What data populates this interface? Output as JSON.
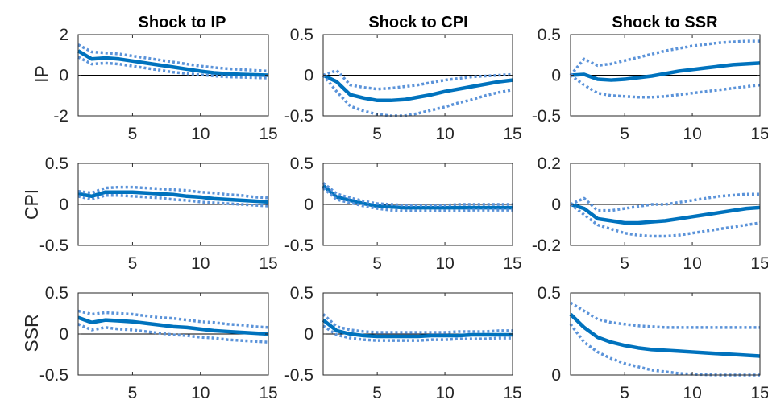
{
  "colors": {
    "line": "#0072BD",
    "band": "#5B93D9"
  },
  "column_titles": [
    "Shock to IP",
    "Shock to CPI",
    "Shock to SSR"
  ],
  "row_labels": [
    "IP",
    "CPI",
    "SSR"
  ],
  "chart_data": [
    {
      "type": "line",
      "row": 0,
      "col": 0,
      "title": "Shock to IP",
      "ylabel": "IP",
      "xlim": [
        1,
        15
      ],
      "ylim": [
        -2,
        2
      ],
      "xticks": [
        5,
        10,
        15
      ],
      "xtick_labels": [
        "5",
        "10",
        "15"
      ],
      "yticks": [
        2,
        0,
        -2
      ],
      "ytick_labels": [
        "2",
        "0",
        "-2"
      ],
      "x": [
        1,
        2,
        3,
        4,
        5,
        6,
        7,
        8,
        9,
        10,
        11,
        12,
        13,
        14,
        15
      ],
      "series": [
        {
          "role": "response",
          "values": [
            1.2,
            0.8,
            0.85,
            0.8,
            0.7,
            0.6,
            0.5,
            0.4,
            0.3,
            0.2,
            0.12,
            0.07,
            0.04,
            0.02,
            0.0
          ]
        },
        {
          "role": "upper",
          "values": [
            1.5,
            1.15,
            1.1,
            1.05,
            0.95,
            0.85,
            0.75,
            0.65,
            0.55,
            0.45,
            0.38,
            0.32,
            0.28,
            0.24,
            0.2
          ]
        },
        {
          "role": "lower",
          "values": [
            0.9,
            0.55,
            0.6,
            0.55,
            0.45,
            0.35,
            0.25,
            0.15,
            0.08,
            0.02,
            -0.04,
            -0.08,
            -0.1,
            -0.12,
            -0.14
          ]
        }
      ]
    },
    {
      "type": "line",
      "row": 0,
      "col": 1,
      "title": "Shock to CPI",
      "ylabel": "",
      "xlim": [
        1,
        15
      ],
      "ylim": [
        -0.5,
        0.5
      ],
      "xticks": [
        5,
        10,
        15
      ],
      "xtick_labels": [
        "5",
        "10",
        "15"
      ],
      "yticks": [
        0.5,
        0,
        -0.5
      ],
      "ytick_labels": [
        "0.5",
        "0",
        "-0.5"
      ],
      "x": [
        1,
        2,
        3,
        4,
        5,
        6,
        7,
        8,
        9,
        10,
        11,
        12,
        13,
        14,
        15
      ],
      "series": [
        {
          "role": "response",
          "values": [
            0.0,
            -0.08,
            -0.24,
            -0.28,
            -0.31,
            -0.31,
            -0.3,
            -0.27,
            -0.24,
            -0.2,
            -0.17,
            -0.14,
            -0.11,
            -0.08,
            -0.06
          ]
        },
        {
          "role": "upper",
          "values": [
            0.0,
            0.06,
            -0.12,
            -0.15,
            -0.17,
            -0.16,
            -0.14,
            -0.12,
            -0.09,
            -0.06,
            -0.04,
            -0.02,
            -0.01,
            0.0,
            0.01
          ]
        },
        {
          "role": "lower",
          "values": [
            0.0,
            -0.2,
            -0.38,
            -0.44,
            -0.48,
            -0.5,
            -0.5,
            -0.47,
            -0.43,
            -0.39,
            -0.34,
            -0.3,
            -0.25,
            -0.21,
            -0.18
          ]
        }
      ]
    },
    {
      "type": "line",
      "row": 0,
      "col": 2,
      "title": "Shock to SSR",
      "ylabel": "",
      "xlim": [
        1,
        15
      ],
      "ylim": [
        -0.5,
        0.5
      ],
      "xticks": [
        5,
        10,
        15
      ],
      "xtick_labels": [
        "5",
        "10",
        "15"
      ],
      "yticks": [
        0.5,
        0,
        -0.5
      ],
      "ytick_labels": [
        "0.5",
        "0",
        "-0.5"
      ],
      "x": [
        1,
        2,
        3,
        4,
        5,
        6,
        7,
        8,
        9,
        10,
        11,
        12,
        13,
        14,
        15
      ],
      "series": [
        {
          "role": "response",
          "values": [
            0.0,
            0.01,
            -0.05,
            -0.06,
            -0.05,
            -0.03,
            -0.01,
            0.02,
            0.05,
            0.07,
            0.09,
            0.11,
            0.13,
            0.14,
            0.15
          ]
        },
        {
          "role": "upper",
          "values": [
            0.0,
            0.2,
            0.12,
            0.14,
            0.18,
            0.22,
            0.26,
            0.3,
            0.33,
            0.36,
            0.38,
            0.4,
            0.41,
            0.42,
            0.42
          ]
        },
        {
          "role": "lower",
          "values": [
            0.0,
            -0.12,
            -0.22,
            -0.25,
            -0.26,
            -0.27,
            -0.27,
            -0.26,
            -0.24,
            -0.22,
            -0.2,
            -0.18,
            -0.16,
            -0.14,
            -0.12
          ]
        }
      ]
    },
    {
      "type": "line",
      "row": 1,
      "col": 0,
      "title": "Shock to IP",
      "ylabel": "CPI",
      "xlim": [
        1,
        15
      ],
      "ylim": [
        -0.5,
        0.5
      ],
      "xticks": [
        5,
        10,
        15
      ],
      "xtick_labels": [
        "5",
        "10",
        "15"
      ],
      "yticks": [
        0.5,
        0,
        -0.5
      ],
      "ytick_labels": [
        "0.5",
        "0",
        "-0.5"
      ],
      "x": [
        1,
        2,
        3,
        4,
        5,
        6,
        7,
        8,
        9,
        10,
        11,
        12,
        13,
        14,
        15
      ],
      "series": [
        {
          "role": "response",
          "values": [
            0.13,
            0.1,
            0.15,
            0.15,
            0.15,
            0.14,
            0.13,
            0.12,
            0.1,
            0.09,
            0.07,
            0.06,
            0.05,
            0.04,
            0.03
          ]
        },
        {
          "role": "upper",
          "values": [
            0.16,
            0.14,
            0.2,
            0.21,
            0.21,
            0.2,
            0.19,
            0.18,
            0.17,
            0.15,
            0.14,
            0.12,
            0.11,
            0.09,
            0.08
          ]
        },
        {
          "role": "lower",
          "values": [
            0.1,
            0.06,
            0.11,
            0.11,
            0.1,
            0.09,
            0.08,
            0.06,
            0.05,
            0.03,
            0.02,
            0.01,
            0.0,
            -0.01,
            -0.02
          ]
        }
      ]
    },
    {
      "type": "line",
      "row": 1,
      "col": 1,
      "title": "Shock to CPI",
      "ylabel": "",
      "xlim": [
        1,
        15
      ],
      "ylim": [
        -0.5,
        0.5
      ],
      "xticks": [
        5,
        10,
        15
      ],
      "xtick_labels": [
        "5",
        "10",
        "15"
      ],
      "yticks": [
        0.5,
        0,
        -0.5
      ],
      "ytick_labels": [
        "0.5",
        "0",
        "-0.5"
      ],
      "x": [
        1,
        2,
        3,
        4,
        5,
        6,
        7,
        8,
        9,
        10,
        11,
        12,
        13,
        14,
        15
      ],
      "series": [
        {
          "role": "response",
          "values": [
            0.23,
            0.09,
            0.05,
            0.01,
            -0.02,
            -0.03,
            -0.04,
            -0.04,
            -0.04,
            -0.04,
            -0.04,
            -0.04,
            -0.04,
            -0.04,
            -0.04
          ]
        },
        {
          "role": "upper",
          "values": [
            0.26,
            0.13,
            0.08,
            0.04,
            0.01,
            0.0,
            -0.01,
            -0.01,
            -0.01,
            -0.01,
            0.0,
            0.0,
            0.0,
            0.0,
            0.0
          ]
        },
        {
          "role": "lower",
          "values": [
            0.2,
            0.06,
            0.02,
            -0.02,
            -0.05,
            -0.07,
            -0.08,
            -0.08,
            -0.08,
            -0.08,
            -0.08,
            -0.07,
            -0.07,
            -0.07,
            -0.07
          ]
        }
      ]
    },
    {
      "type": "line",
      "row": 1,
      "col": 2,
      "title": "Shock to SSR",
      "ylabel": "",
      "xlim": [
        1,
        15
      ],
      "ylim": [
        -0.2,
        0.2
      ],
      "xticks": [
        5,
        10,
        15
      ],
      "xtick_labels": [
        "5",
        "10",
        "15"
      ],
      "yticks": [
        0.2,
        0,
        -0.2
      ],
      "ytick_labels": [
        "0.2",
        "0",
        "-0.2"
      ],
      "x": [
        1,
        2,
        3,
        4,
        5,
        6,
        7,
        8,
        9,
        10,
        11,
        12,
        13,
        14,
        15
      ],
      "series": [
        {
          "role": "response",
          "values": [
            0.0,
            -0.02,
            -0.07,
            -0.08,
            -0.09,
            -0.09,
            -0.085,
            -0.08,
            -0.07,
            -0.06,
            -0.05,
            -0.04,
            -0.03,
            -0.02,
            -0.015
          ]
        },
        {
          "role": "upper",
          "values": [
            0.0,
            0.03,
            -0.03,
            -0.03,
            -0.02,
            -0.01,
            0.0,
            0.0,
            0.01,
            0.02,
            0.03,
            0.04,
            0.045,
            0.05,
            0.05
          ]
        },
        {
          "role": "lower",
          "values": [
            0.0,
            -0.05,
            -0.1,
            -0.12,
            -0.14,
            -0.15,
            -0.155,
            -0.155,
            -0.15,
            -0.14,
            -0.13,
            -0.12,
            -0.11,
            -0.1,
            -0.09
          ]
        }
      ]
    },
    {
      "type": "line",
      "row": 2,
      "col": 0,
      "title": "Shock to IP",
      "ylabel": "SSR",
      "xlim": [
        1,
        15
      ],
      "ylim": [
        -0.5,
        0.5
      ],
      "xticks": [
        5,
        10,
        15
      ],
      "xtick_labels": [
        "5",
        "10",
        "15"
      ],
      "yticks": [
        0.5,
        0,
        -0.5
      ],
      "ytick_labels": [
        "0.5",
        "0",
        "-0.5"
      ],
      "x": [
        1,
        2,
        3,
        4,
        5,
        6,
        7,
        8,
        9,
        10,
        11,
        12,
        13,
        14,
        15
      ],
      "series": [
        {
          "role": "response",
          "values": [
            0.2,
            0.14,
            0.17,
            0.16,
            0.15,
            0.13,
            0.11,
            0.09,
            0.08,
            0.06,
            0.04,
            0.03,
            0.02,
            0.01,
            0.0
          ]
        },
        {
          "role": "upper",
          "values": [
            0.28,
            0.24,
            0.26,
            0.25,
            0.24,
            0.22,
            0.2,
            0.19,
            0.17,
            0.15,
            0.14,
            0.12,
            0.11,
            0.09,
            0.08
          ]
        },
        {
          "role": "lower",
          "values": [
            0.12,
            0.05,
            0.08,
            0.06,
            0.05,
            0.03,
            0.01,
            -0.01,
            -0.02,
            -0.04,
            -0.05,
            -0.07,
            -0.08,
            -0.09,
            -0.1
          ]
        }
      ]
    },
    {
      "type": "line",
      "row": 2,
      "col": 1,
      "title": "Shock to CPI",
      "ylabel": "",
      "xlim": [
        1,
        15
      ],
      "ylim": [
        -0.5,
        0.5
      ],
      "xticks": [
        5,
        10,
        15
      ],
      "xtick_labels": [
        "5",
        "10",
        "15"
      ],
      "yticks": [
        0.5,
        0,
        -0.5
      ],
      "ytick_labels": [
        "0.5",
        "0",
        "-0.5"
      ],
      "x": [
        1,
        2,
        3,
        4,
        5,
        6,
        7,
        8,
        9,
        10,
        11,
        12,
        13,
        14,
        15
      ],
      "series": [
        {
          "role": "response",
          "values": [
            0.17,
            0.04,
            0.0,
            -0.02,
            -0.03,
            -0.03,
            -0.03,
            -0.03,
            -0.02,
            -0.02,
            -0.02,
            -0.01,
            -0.01,
            -0.01,
            -0.01
          ]
        },
        {
          "role": "upper",
          "values": [
            0.24,
            0.09,
            0.05,
            0.03,
            0.02,
            0.02,
            0.02,
            0.02,
            0.02,
            0.02,
            0.03,
            0.03,
            0.03,
            0.04,
            0.04
          ]
        },
        {
          "role": "lower",
          "values": [
            0.1,
            -0.01,
            -0.05,
            -0.07,
            -0.08,
            -0.08,
            -0.08,
            -0.08,
            -0.07,
            -0.07,
            -0.06,
            -0.06,
            -0.06,
            -0.05,
            -0.05
          ]
        }
      ]
    },
    {
      "type": "line",
      "row": 2,
      "col": 2,
      "title": "Shock to SSR",
      "ylabel": "",
      "xlim": [
        1,
        15
      ],
      "ylim": [
        0,
        0.5
      ],
      "xticks": [
        5,
        10,
        15
      ],
      "xtick_labels": [
        "5",
        "10",
        "15"
      ],
      "yticks": [
        0.5,
        0
      ],
      "ytick_labels": [
        "0.5",
        "0"
      ],
      "x": [
        1,
        2,
        3,
        4,
        5,
        6,
        7,
        8,
        9,
        10,
        11,
        12,
        13,
        14,
        15
      ],
      "series": [
        {
          "role": "response",
          "values": [
            0.37,
            0.29,
            0.23,
            0.2,
            0.18,
            0.165,
            0.155,
            0.15,
            0.145,
            0.14,
            0.135,
            0.13,
            0.125,
            0.12,
            0.115
          ]
        },
        {
          "role": "upper",
          "values": [
            0.44,
            0.39,
            0.34,
            0.32,
            0.31,
            0.3,
            0.295,
            0.29,
            0.29,
            0.29,
            0.29,
            0.29,
            0.29,
            0.29,
            0.29
          ]
        },
        {
          "role": "lower",
          "values": [
            0.31,
            0.2,
            0.14,
            0.1,
            0.07,
            0.05,
            0.03,
            0.02,
            0.01,
            0.005,
            0.002,
            0.0,
            0.0,
            0.0,
            0.0
          ]
        }
      ]
    }
  ]
}
